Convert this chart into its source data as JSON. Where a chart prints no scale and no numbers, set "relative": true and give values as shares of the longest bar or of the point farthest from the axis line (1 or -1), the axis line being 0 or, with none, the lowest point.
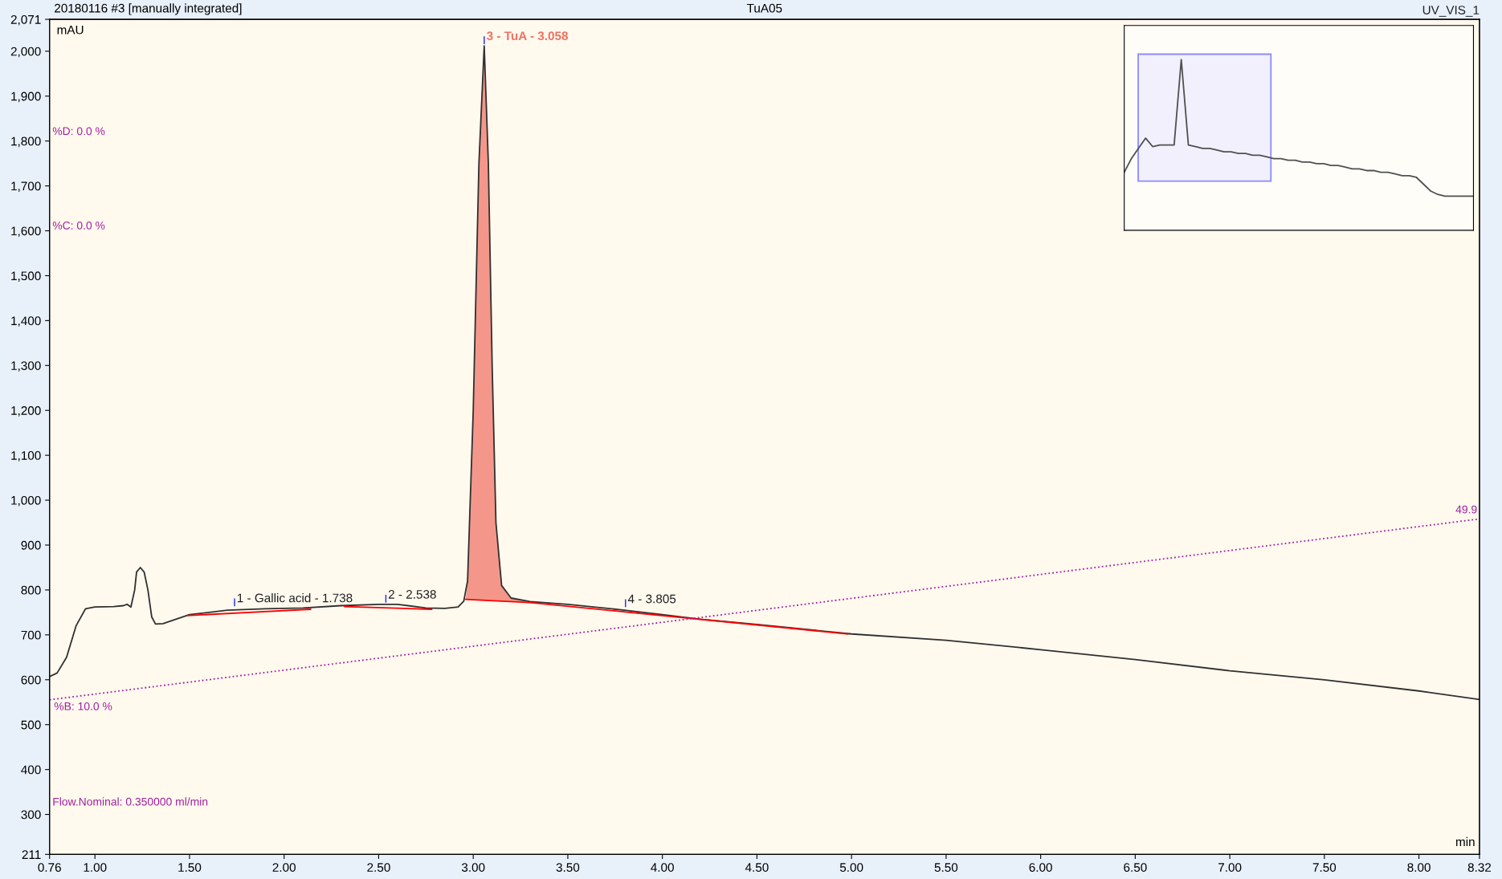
{
  "chart_data": [
    {
      "type": "line",
      "title": "20180116 #3 [manually integrated]",
      "subtitle": "TuA05",
      "xlabel": "min",
      "ylabel": "mAU",
      "xlim": [
        0.76,
        8.32
      ],
      "xticks": [
        0.76,
        {
          "value": 1.0,
          "label": "1.00"
        },
        {
          "value": 1.5,
          "label": "1.50"
        },
        {
          "value": 2.0,
          "label": "2.00"
        },
        {
          "value": 2.5,
          "label": "2.50"
        },
        {
          "value": 3.0,
          "label": "3.00"
        },
        {
          "value": 3.5,
          "label": "3.50"
        },
        {
          "value": 4.0,
          "label": "4.00"
        },
        {
          "value": 4.5,
          "label": "4.50"
        },
        {
          "value": 5.0,
          "label": "5.00"
        },
        {
          "value": 5.5,
          "label": "5.50"
        },
        {
          "value": 6.0,
          "label": "6.00"
        },
        {
          "value": 6.5,
          "label": "6.50"
        },
        {
          "value": 7.0,
          "label": "7.00"
        },
        {
          "value": 7.5,
          "label": "7.50"
        },
        {
          "value": 8.0,
          "label": "8.00"
        },
        8.32
      ],
      "ylim": [
        211,
        2071
      ],
      "yticks": [
        211,
        300,
        400,
        500,
        600,
        700,
        800,
        900,
        {
          "value": 1000,
          "label": "1,000"
        },
        {
          "value": 1100,
          "label": "1,100"
        },
        {
          "value": 1200,
          "label": "1,200"
        },
        {
          "value": 1300,
          "label": "1,300"
        },
        {
          "value": 1400,
          "label": "1,400"
        },
        {
          "value": 1500,
          "label": "1,500"
        },
        {
          "value": 1600,
          "label": "1,600"
        },
        {
          "value": 1700,
          "label": "1,700"
        },
        {
          "value": 1800,
          "label": "1,800"
        },
        {
          "value": 1900,
          "label": "1,900"
        },
        {
          "value": 2000,
          "label": "2,000"
        },
        {
          "value": 2071,
          "label": "2,071"
        }
      ],
      "y2lim": [
        -24.1,
        160.1
      ],
      "grid": false,
      "legend": false,
      "series": [
        {
          "type": "area",
          "color": "#f4978a",
          "x": [
            2.96,
            2.97,
            3.0,
            3.03,
            3.058,
            3.08,
            3.1,
            3.12,
            3.15,
            3.2,
            3.3
          ],
          "values": [
            779,
            820,
            1200,
            1750,
            2012,
            1750,
            1300,
            950,
            810,
            782,
            772
          ]
        },
        {
          "type": "line",
          "color": "#303030",
          "x": [
            0.76,
            0.8,
            0.85,
            0.9,
            0.95,
            1.0,
            1.1,
            1.15,
            1.17,
            1.19,
            1.21,
            1.22,
            1.24,
            1.26,
            1.28,
            1.3,
            1.32,
            1.36,
            1.45,
            1.5,
            1.7,
            1.9,
            2.1,
            2.3,
            2.5,
            2.6,
            2.75,
            2.85,
            2.92,
            2.95,
            2.97,
            3.0,
            3.03,
            3.058,
            3.08,
            3.1,
            3.12,
            3.15,
            3.2,
            3.3,
            3.5,
            3.8,
            4.0,
            4.2,
            4.5,
            5.0,
            5.5,
            6.0,
            6.5,
            7.0,
            7.5,
            8.0,
            8.32
          ],
          "values": [
            607,
            615,
            650,
            720,
            758,
            762,
            763,
            765,
            768,
            762,
            800,
            840,
            850,
            840,
            800,
            740,
            724,
            725,
            738,
            745,
            755,
            758,
            760,
            765,
            768,
            768,
            760,
            759,
            762,
            775,
            820,
            1200,
            1750,
            2012,
            1750,
            1300,
            950,
            810,
            782,
            774,
            768,
            755,
            745,
            735,
            723,
            702,
            688,
            667,
            645,
            620,
            600,
            575,
            556
          ]
        },
        {
          "type": "line",
          "color": "#ff0000",
          "x": [
            1.49,
            2.14,
            2.2,
            2.32,
            2.78,
            2.85,
            2.96,
            3.3,
            4.98
          ],
          "values": [
            743,
            757,
            null,
            763,
            757,
            null,
            779,
            772,
            702
          ]
        },
        {
          "type": "line",
          "axis": "y2",
          "color": "#a020a0",
          "line_style": "dotted",
          "x": [
            0.76,
            8.32
          ],
          "values": [
            10.0,
            49.9
          ],
          "value_labels": [
            "%B: 10.0 %",
            "49.9"
          ]
        }
      ],
      "annotations": [
        {
          "text": "1 - Gallic acid - 1.738",
          "x": 1.738,
          "y": 760
        },
        {
          "text": "2 - 2.538",
          "x": 2.538,
          "y": 768
        },
        {
          "text": "3 - TuA - 3.058",
          "x": 3.058,
          "y": 2012
        },
        {
          "text": "4 - 3.805",
          "x": 3.805,
          "y": 758
        },
        "UV_VIS_1",
        "%D: 0.0 %",
        "%C: 0.0 %",
        "Flow.Nominal: 0.350000 ml/min"
      ]
    },
    {
      "type": "line",
      "relative": true,
      "categories": [
        null,
        null,
        null,
        null,
        null,
        null,
        null,
        null,
        null,
        null,
        null,
        null,
        null,
        null,
        null,
        null,
        null,
        null,
        null,
        null,
        null,
        null,
        null,
        null,
        null,
        null,
        null,
        null,
        null,
        null,
        null,
        null,
        null,
        null,
        null,
        null,
        null,
        null,
        null,
        null,
        null,
        null,
        null,
        null,
        null,
        null,
        null,
        null,
        null,
        null
      ],
      "series": [
        {
          "color": "#505050",
          "values": [
            0.34,
            0.42,
            0.48,
            0.54,
            0.49,
            0.5,
            0.5,
            0.5,
            1.0,
            0.5,
            0.49,
            0.48,
            0.48,
            0.47,
            0.46,
            0.46,
            0.45,
            0.45,
            0.44,
            0.44,
            0.43,
            0.42,
            0.42,
            0.41,
            0.41,
            0.4,
            0.4,
            0.39,
            0.39,
            0.38,
            0.38,
            0.37,
            0.36,
            0.36,
            0.35,
            0.35,
            0.34,
            0.34,
            0.33,
            0.32,
            0.32,
            0.31,
            0.27,
            0.23,
            0.21,
            0.2,
            0.2,
            0.2,
            0.2,
            0.2
          ]
        }
      ]
    }
  ]
}
